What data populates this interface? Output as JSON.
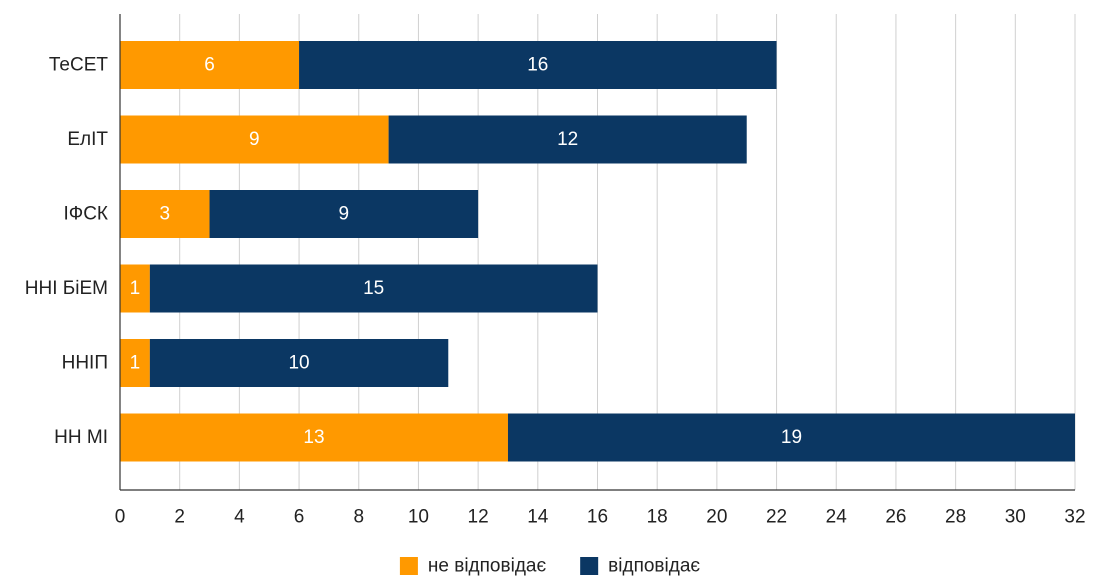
{
  "chart_data": {
    "type": "bar",
    "orientation": "horizontal",
    "stacked": true,
    "categories": [
      "ТеСЕТ",
      "ЕлІТ",
      "ІФСК",
      "ННІ БіЕМ",
      "ННІП",
      "НН МІ"
    ],
    "series": [
      {
        "name": "не відповідає",
        "color": "#ff9900",
        "values": [
          6,
          9,
          3,
          1,
          1,
          13
        ]
      },
      {
        "name": "відповідає",
        "color": "#0b3763",
        "values": [
          16,
          12,
          9,
          15,
          10,
          19
        ]
      }
    ],
    "xlim": [
      0,
      32
    ],
    "xticks": [
      0,
      2,
      4,
      6,
      8,
      10,
      12,
      14,
      16,
      18,
      20,
      22,
      24,
      26,
      28,
      30,
      32
    ],
    "grid": true,
    "legend_position": "bottom",
    "title": "",
    "xlabel": "",
    "ylabel": ""
  }
}
